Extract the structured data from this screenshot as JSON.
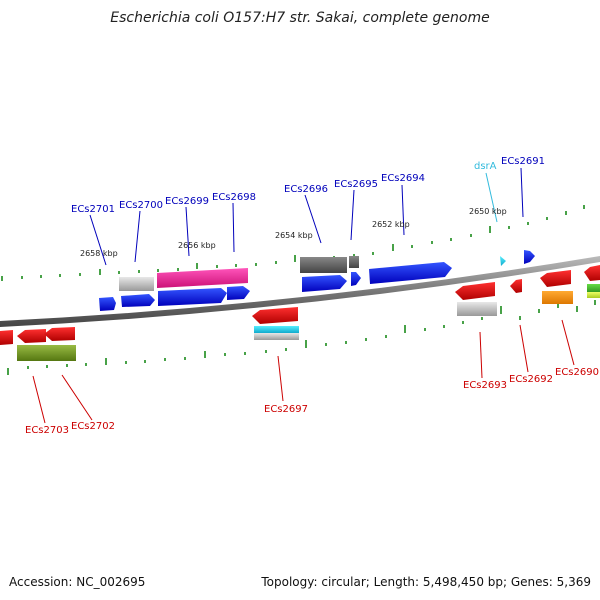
{
  "title": "Escherichia coli O157:H7 str. Sakai, complete genome",
  "footer": {
    "accession": "Accession: NC_002695",
    "summary": "Topology: circular; Length: 5,498,450 bp; Genes: 5,369"
  },
  "colors": {
    "backbone": "#8c8c8c",
    "tick": "#1a8a1a",
    "forward_label": "#0000bb",
    "reverse_label": "#cc0000",
    "rna_label": "#33bbdd"
  },
  "scale_labels": [
    "2658 kbp",
    "2656 kbp",
    "2654 kbp",
    "2652 kbp",
    "2650 kbp"
  ],
  "forward_labels": [
    "ECs2701",
    "ECs2700",
    "ECs2699",
    "ECs2698",
    "ECs2696",
    "ECs2695",
    "ECs2694",
    "ECs2691"
  ],
  "rna_labels": [
    "dsrA"
  ],
  "reverse_labels": [
    "ECs2703",
    "ECs2702",
    "ECs2697",
    "ECs2693",
    "ECs2692",
    "ECs2690"
  ]
}
